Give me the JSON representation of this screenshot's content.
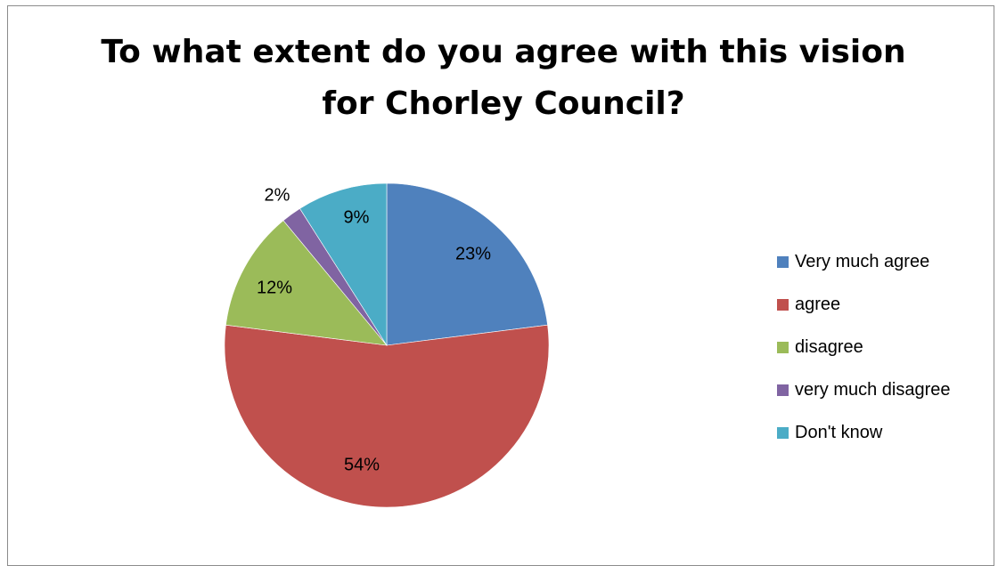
{
  "chart_data": {
    "type": "pie",
    "title": "To what extent do you agree with this vision for Chorley Council?",
    "title_lines": [
      "To what extent do you agree with this vision",
      "for Chorley Council?"
    ],
    "legend_position": "right",
    "categories": [
      "Very much agree",
      "agree",
      "disagree",
      "very much disagree",
      "Don't know"
    ],
    "values": [
      23,
      54,
      12,
      2,
      9
    ],
    "data_labels": [
      "23%",
      "54%",
      "12%",
      "2%",
      "9%"
    ],
    "colors": [
      "#4f81bd",
      "#c0504d",
      "#9bbb59",
      "#8064a2",
      "#4bacc6"
    ],
    "start_angle_deg": 0,
    "direction": "clockwise"
  }
}
